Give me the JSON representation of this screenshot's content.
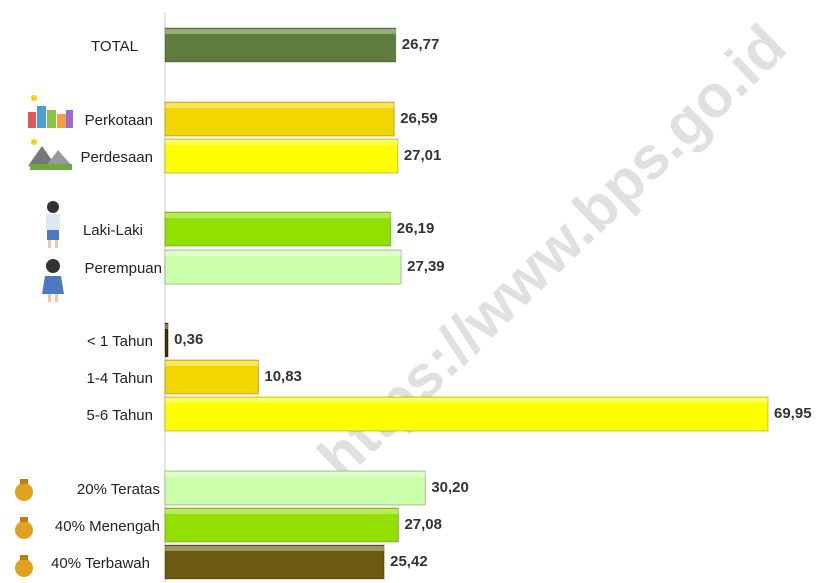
{
  "chart_data": {
    "type": "hbar",
    "categories": [
      "TOTAL",
      "Perkotaan",
      "Perdesaan",
      "Laki-Laki",
      "Perempuan",
      "< 1 Tahun",
      "1-4 Tahun",
      "5-6 Tahun",
      "20% Teratas",
      "40% Menengah",
      "40% Terbawah"
    ],
    "values": [
      26.77,
      26.59,
      27.01,
      26.19,
      27.39,
      0.36,
      10.83,
      69.95,
      30.2,
      27.08,
      25.42
    ],
    "value_labels": [
      "26,77",
      "26,59",
      "27,01",
      "26,19",
      "27,39",
      "0,36",
      "10,83",
      "69,95",
      "30,20",
      "27,08",
      "25,42"
    ],
    "colors": [
      "#5e7d3c",
      "#f2d600",
      "#ffff00",
      "#92e000",
      "#ccffaa",
      "#3a3000",
      "#f2d600",
      "#ffff00",
      "#ccffaa",
      "#92e000",
      "#6b5a10"
    ],
    "watermark": "https://www.bps.go.id"
  }
}
